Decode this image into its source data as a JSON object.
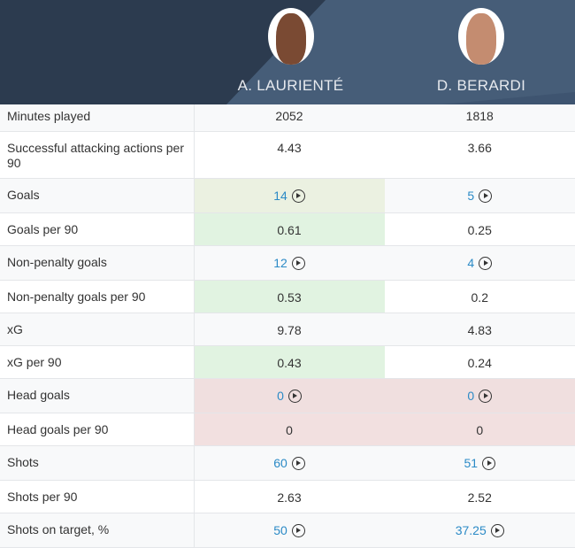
{
  "players": [
    {
      "name": "A. LAURIENTÉ"
    },
    {
      "name": "D. BERARDI"
    }
  ],
  "rows": [
    {
      "label": "Minutes played",
      "v": [
        "2052",
        "1818"
      ],
      "link": false
    },
    {
      "label": "Successful attacking actions per 90",
      "v": [
        "4.43",
        "3.66"
      ],
      "link": false
    },
    {
      "label": "Goals",
      "v": [
        "14",
        "5"
      ],
      "link": true
    },
    {
      "label": "Goals per 90",
      "v": [
        "0.61",
        "0.25"
      ],
      "link": false
    },
    {
      "label": "Non-penalty goals",
      "v": [
        "12",
        "4"
      ],
      "link": true
    },
    {
      "label": "Non-penalty goals per 90",
      "v": [
        "0.53",
        "0.2"
      ],
      "link": false
    },
    {
      "label": "xG",
      "v": [
        "9.78",
        "4.83"
      ],
      "link": false
    },
    {
      "label": "xG per 90",
      "v": [
        "0.43",
        "0.24"
      ],
      "link": false
    },
    {
      "label": "Head goals",
      "v": [
        "0",
        "0"
      ],
      "link": true
    },
    {
      "label": "Head goals per 90",
      "v": [
        "0",
        "0"
      ],
      "link": false
    },
    {
      "label": "Shots",
      "v": [
        "60",
        "51"
      ],
      "link": true
    },
    {
      "label": "Shots per 90",
      "v": [
        "2.63",
        "2.52"
      ],
      "link": false
    },
    {
      "label": "Shots on target, %",
      "v": [
        "50",
        "37.25"
      ],
      "link": true
    }
  ],
  "colors": {
    "header": "#2c3b4f",
    "link": "#2b8ac6",
    "better": "#e1f3e1",
    "worse": "#f0dfdf"
  }
}
